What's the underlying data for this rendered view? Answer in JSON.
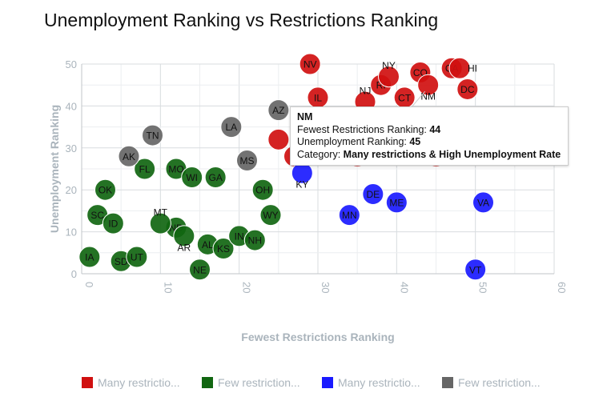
{
  "chart_data": {
    "type": "scatter",
    "title": "Unemployment Ranking vs Restrictions Ranking",
    "xlabel": "Fewest Restrictions Ranking",
    "ylabel": "Unemployment Ranking",
    "xlim": [
      0,
      60
    ],
    "ylim": [
      0,
      50
    ],
    "xticks": [
      0,
      10,
      20,
      30,
      40,
      50,
      60
    ],
    "yticks": [
      0,
      10,
      20,
      30,
      40,
      50
    ],
    "grid": true,
    "legend_position": "bottom",
    "series": [
      {
        "name": "Many restrictio...",
        "color": "#d01010",
        "points": [
          [
            "NV",
            29,
            50
          ],
          [
            "IL",
            30,
            42
          ],
          [
            "NJ",
            36,
            41
          ],
          [
            "RI",
            38,
            45
          ],
          [
            "NY",
            39,
            47
          ],
          [
            "CO",
            43,
            48
          ],
          [
            "CT",
            41,
            42
          ],
          [
            "CA",
            47,
            49
          ],
          [
            "HI",
            48,
            49
          ],
          [
            "DC",
            49,
            44
          ],
          [
            "",
            25,
            32
          ],
          [
            "",
            27,
            28
          ],
          [
            "",
            35,
            28
          ],
          [
            "",
            45,
            28
          ],
          [
            "NM",
            44,
            45
          ]
        ]
      },
      {
        "name": "Few restriction...",
        "color": "#116611",
        "points": [
          [
            "IA",
            1,
            4
          ],
          [
            "SD",
            5,
            3
          ],
          [
            "UT",
            7,
            4
          ],
          [
            "SC",
            2,
            14
          ],
          [
            "ID",
            4,
            12
          ],
          [
            "OK",
            3,
            20
          ],
          [
            "FL",
            8,
            25
          ],
          [
            "MO",
            12,
            25
          ],
          [
            "WI",
            14,
            23
          ],
          [
            "GA",
            17,
            23
          ],
          [
            "ND",
            12,
            11
          ],
          [
            "MT",
            10,
            12
          ],
          [
            "AR",
            13,
            9
          ],
          [
            "AL",
            16,
            7
          ],
          [
            "KS",
            18,
            6
          ],
          [
            "NE",
            15,
            1
          ],
          [
            "IN",
            20,
            9
          ],
          [
            "NH",
            22,
            8
          ],
          [
            "OH",
            23,
            20
          ],
          [
            "WY",
            24,
            14
          ]
        ]
      },
      {
        "name": "Many restrictio...",
        "color": "#1a1aff",
        "points": [
          [
            "KY",
            28,
            24
          ],
          [
            "MN",
            34,
            14
          ],
          [
            "DE",
            37,
            19
          ],
          [
            "ME",
            40,
            17
          ],
          [
            "VA",
            51,
            17
          ],
          [
            "VT",
            50,
            1
          ]
        ]
      },
      {
        "name": "Few restriction...",
        "color": "#666666",
        "points": [
          [
            "AK",
            6,
            28
          ],
          [
            "TN",
            9,
            33
          ],
          [
            "LA",
            19,
            35
          ],
          [
            "MS",
            21,
            27
          ],
          [
            "AZ",
            25,
            39
          ]
        ]
      }
    ],
    "tooltip": {
      "state": "NM",
      "x_label": "Fewest Restrictions Ranking: ",
      "x_value": "44",
      "y_label": "Unemployment Ranking: ",
      "y_value": "45",
      "cat_label": "Category: ",
      "cat_value": "Many restrictions & High Unemployment Rate"
    }
  }
}
